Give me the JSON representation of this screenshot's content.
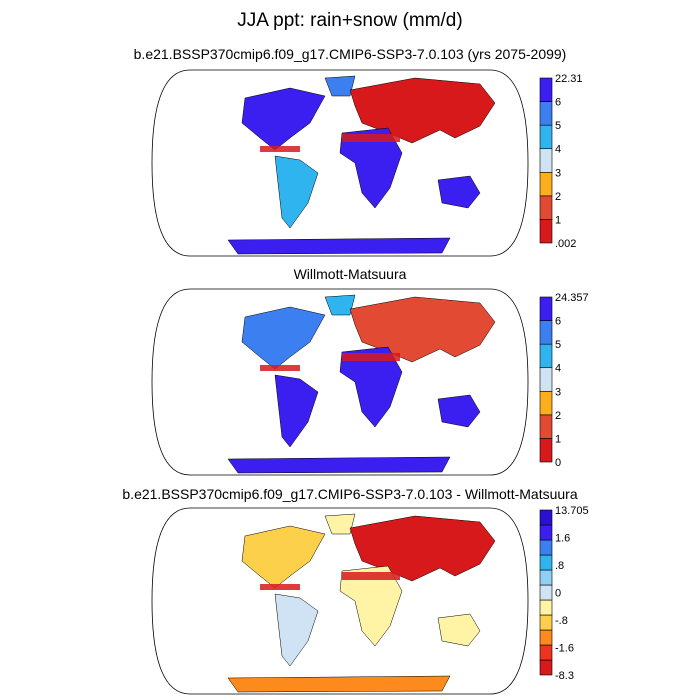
{
  "figure": {
    "title": "JJA ppt: rain+snow (mm/d)"
  },
  "panels": [
    {
      "id": "model",
      "subtitle": "b.e21.BSSP370cmip6.f09_g17.CMIP6-SSP3-7.0.103 (yrs 2075-2099)",
      "colorbar": {
        "labels": [
          "22.31",
          "6",
          "5",
          "4",
          "3",
          "2",
          "1",
          ".002"
        ],
        "colors": [
          "#d7191c",
          "#e34a33",
          "#fdae1d",
          "#cfe3f5",
          "#2fb4f0",
          "#3c7ff0",
          "#3b1ff0"
        ]
      }
    },
    {
      "id": "obs",
      "subtitle": "Willmott-Matsuura",
      "colorbar": {
        "labels": [
          "24.357",
          "6",
          "5",
          "4",
          "3",
          "2",
          "1",
          "0"
        ],
        "colors": [
          "#d7191c",
          "#e34a33",
          "#fdae1d",
          "#cfe3f5",
          "#2fb4f0",
          "#3c7ff0",
          "#3b1ff0"
        ]
      }
    },
    {
      "id": "diff",
      "subtitle": "b.e21.BSSP370cmip6.f09_g17.CMIP6-SSP3-7.0.103 - Willmott-Matsuura",
      "colorbar": {
        "labels": [
          "13.705",
          "1.6",
          ".8",
          "0",
          "-.8",
          "-1.6",
          "-8.3"
        ],
        "colors": [
          "#d7191c",
          "#ee3320",
          "#fd8a1c",
          "#fcd04a",
          "#fff3a6",
          "#cfe3f5",
          "#8fd0f5",
          "#2fb4f0",
          "#3c7ff0",
          "#3b1ff0",
          "#2a10d0"
        ]
      }
    }
  ]
}
